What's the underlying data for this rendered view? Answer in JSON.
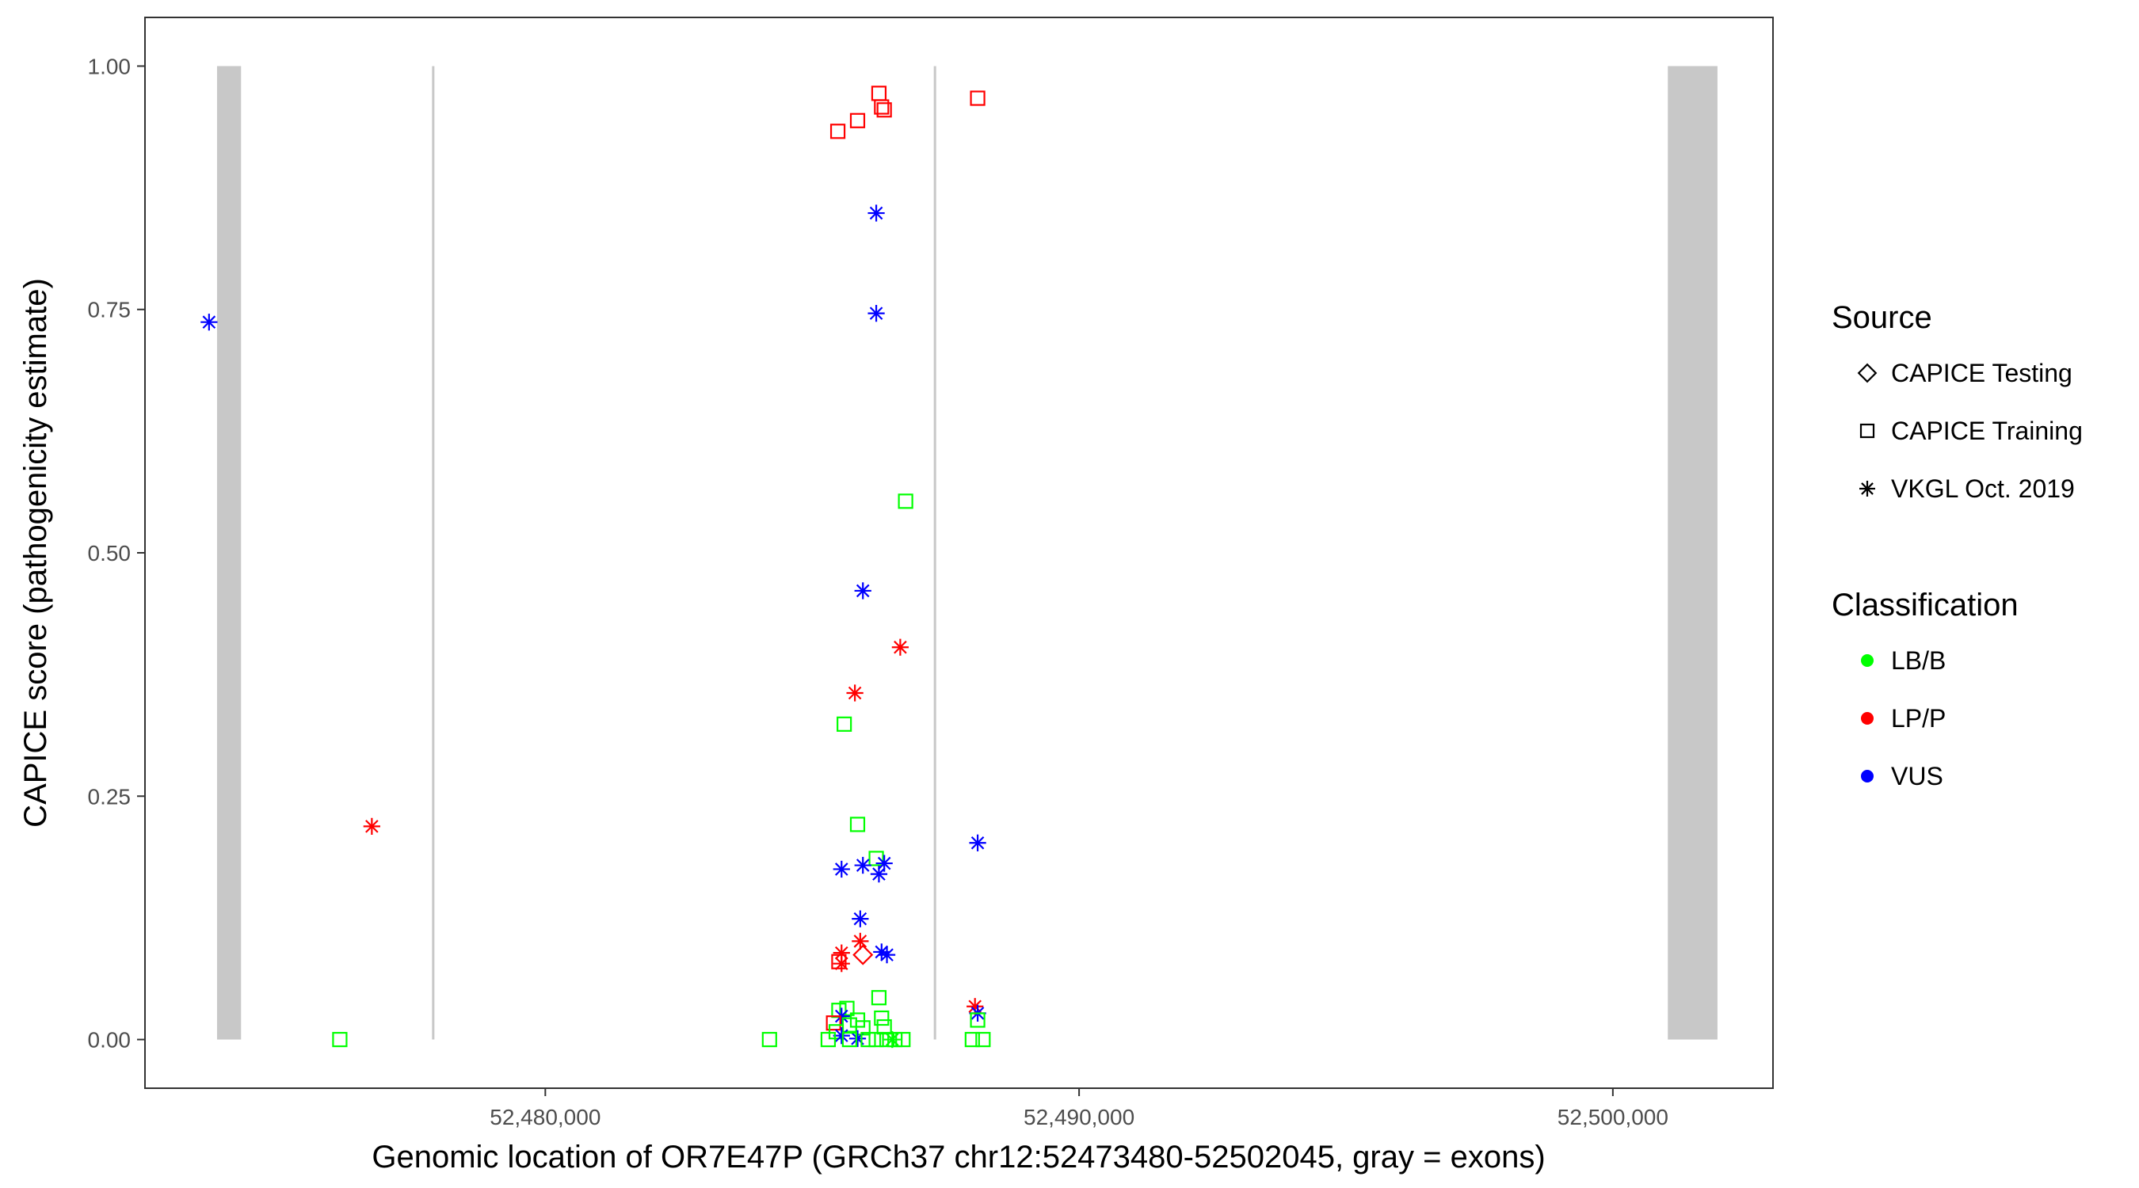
{
  "chart_data": {
    "type": "scatter",
    "title": "",
    "xlabel": "Genomic location of OR7E47P (GRCh37 chr12:52473480-52502045, gray = exons)",
    "ylabel": "CAPICE score (pathogenicity estimate)",
    "xlim": [
      52472500,
      52503000
    ],
    "ylim": [
      -0.05,
      1.05
    ],
    "x_ticks": [
      52480000,
      52490000,
      52500000
    ],
    "x_tick_labels": [
      "52,480,000",
      "52,490,000",
      "52,500,000"
    ],
    "y_ticks": [
      0,
      0.25,
      0.5,
      0.75,
      1.0
    ],
    "y_tick_labels": [
      "0.00",
      "0.25",
      "0.50",
      "0.75",
      "1.00"
    ],
    "grid": false,
    "exons": [
      [
        52473850,
        52474300
      ],
      [
        52501030,
        52501960
      ]
    ],
    "boundaries": [
      52477900,
      52487300
    ],
    "legend": {
      "placement": "right",
      "source_title": "Source",
      "source_items": [
        {
          "label": "CAPICE Testing",
          "shape": "diamond"
        },
        {
          "label": "CAPICE Training",
          "shape": "square"
        },
        {
          "label": "VKGL Oct. 2019",
          "shape": "asterisk"
        }
      ],
      "class_title": "Classification",
      "class_items": [
        {
          "label": "LB/B",
          "color": "#00ff00"
        },
        {
          "label": "LP/P",
          "color": "#ff0000"
        },
        {
          "label": "VUS",
          "color": "#0000ff"
        }
      ]
    },
    "points": [
      {
        "x": 52486250,
        "y": 0.972,
        "source": "CAPICE Training",
        "class": "LP/P"
      },
      {
        "x": 52486300,
        "y": 0.958,
        "source": "CAPICE Training",
        "class": "LP/P"
      },
      {
        "x": 52486350,
        "y": 0.955,
        "source": "CAPICE Training",
        "class": "LP/P"
      },
      {
        "x": 52485850,
        "y": 0.944,
        "source": "CAPICE Training",
        "class": "LP/P"
      },
      {
        "x": 52485480,
        "y": 0.933,
        "source": "CAPICE Training",
        "class": "LP/P"
      },
      {
        "x": 52488100,
        "y": 0.967,
        "source": "CAPICE Training",
        "class": "LP/P"
      },
      {
        "x": 52486200,
        "y": 0.849,
        "source": "VKGL Oct. 2019",
        "class": "VUS"
      },
      {
        "x": 52486200,
        "y": 0.746,
        "source": "VKGL Oct. 2019",
        "class": "VUS"
      },
      {
        "x": 52473700,
        "y": 0.737,
        "source": "VKGL Oct. 2019",
        "class": "VUS"
      },
      {
        "x": 52486750,
        "y": 0.553,
        "source": "CAPICE Training",
        "class": "LB/B"
      },
      {
        "x": 52485950,
        "y": 0.461,
        "source": "VKGL Oct. 2019",
        "class": "VUS"
      },
      {
        "x": 52486650,
        "y": 0.403,
        "source": "VKGL Oct. 2019",
        "class": "LP/P"
      },
      {
        "x": 52485800,
        "y": 0.356,
        "source": "VKGL Oct. 2019",
        "class": "LP/P"
      },
      {
        "x": 52485600,
        "y": 0.324,
        "source": "CAPICE Training",
        "class": "LB/B"
      },
      {
        "x": 52485850,
        "y": 0.221,
        "source": "CAPICE Training",
        "class": "LB/B"
      },
      {
        "x": 52476750,
        "y": 0.219,
        "source": "VKGL Oct. 2019",
        "class": "LP/P"
      },
      {
        "x": 52488100,
        "y": 0.202,
        "source": "VKGL Oct. 2019",
        "class": "VUS"
      },
      {
        "x": 52486200,
        "y": 0.186,
        "source": "CAPICE Training",
        "class": "LB/B"
      },
      {
        "x": 52486350,
        "y": 0.181,
        "source": "VKGL Oct. 2019",
        "class": "VUS"
      },
      {
        "x": 52485950,
        "y": 0.179,
        "source": "VKGL Oct. 2019",
        "class": "VUS"
      },
      {
        "x": 52485550,
        "y": 0.175,
        "source": "VKGL Oct. 2019",
        "class": "VUS"
      },
      {
        "x": 52486250,
        "y": 0.17,
        "source": "VKGL Oct. 2019",
        "class": "VUS"
      },
      {
        "x": 52485900,
        "y": 0.124,
        "source": "VKGL Oct. 2019",
        "class": "VUS"
      },
      {
        "x": 52485900,
        "y": 0.101,
        "source": "VKGL Oct. 2019",
        "class": "LP/P"
      },
      {
        "x": 52485950,
        "y": 0.087,
        "source": "CAPICE Testing",
        "class": "LP/P"
      },
      {
        "x": 52486300,
        "y": 0.09,
        "source": "VKGL Oct. 2019",
        "class": "VUS"
      },
      {
        "x": 52486400,
        "y": 0.087,
        "source": "VKGL Oct. 2019",
        "class": "VUS"
      },
      {
        "x": 52485550,
        "y": 0.089,
        "source": "VKGL Oct. 2019",
        "class": "LP/P"
      },
      {
        "x": 52485500,
        "y": 0.08,
        "source": "CAPICE Training",
        "class": "LP/P"
      },
      {
        "x": 52485550,
        "y": 0.078,
        "source": "VKGL Oct. 2019",
        "class": "LP/P"
      },
      {
        "x": 52486250,
        "y": 0.043,
        "source": "CAPICE Training",
        "class": "LB/B"
      },
      {
        "x": 52488050,
        "y": 0.034,
        "source": "VKGL Oct. 2019",
        "class": "LP/P"
      },
      {
        "x": 52488100,
        "y": 0.027,
        "source": "VKGL Oct. 2019",
        "class": "VUS"
      },
      {
        "x": 52488100,
        "y": 0.02,
        "source": "CAPICE Training",
        "class": "LB/B"
      },
      {
        "x": 52485650,
        "y": 0.032,
        "source": "CAPICE Training",
        "class": "LB/B"
      },
      {
        "x": 52485500,
        "y": 0.03,
        "source": "CAPICE Training",
        "class": "LB/B"
      },
      {
        "x": 52485550,
        "y": 0.024,
        "source": "VKGL Oct. 2019",
        "class": "VUS"
      },
      {
        "x": 52485850,
        "y": 0.02,
        "source": "CAPICE Training",
        "class": "LB/B"
      },
      {
        "x": 52486300,
        "y": 0.022,
        "source": "CAPICE Training",
        "class": "LB/B"
      },
      {
        "x": 52485400,
        "y": 0.017,
        "source": "CAPICE Training",
        "class": "LP/P"
      },
      {
        "x": 52485700,
        "y": 0.015,
        "source": "CAPICE Training",
        "class": "LB/B"
      },
      {
        "x": 52485950,
        "y": 0.012,
        "source": "CAPICE Training",
        "class": "LB/B"
      },
      {
        "x": 52486350,
        "y": 0.013,
        "source": "CAPICE Training",
        "class": "LB/B"
      },
      {
        "x": 52485450,
        "y": 0.008,
        "source": "CAPICE Training",
        "class": "LB/B"
      },
      {
        "x": 52485550,
        "y": 0.004,
        "source": "VKGL Oct. 2019",
        "class": "VUS"
      },
      {
        "x": 52485850,
        "y": 0.001,
        "source": "VKGL Oct. 2019",
        "class": "VUS"
      },
      {
        "x": 52485300,
        "y": 0.0,
        "source": "CAPICE Training",
        "class": "LB/B"
      },
      {
        "x": 52485700,
        "y": 0.0,
        "source": "CAPICE Training",
        "class": "LB/B"
      },
      {
        "x": 52486050,
        "y": 0.0,
        "source": "CAPICE Training",
        "class": "LB/B"
      },
      {
        "x": 52486200,
        "y": 0.0,
        "source": "CAPICE Training",
        "class": "LB/B"
      },
      {
        "x": 52486400,
        "y": 0.0,
        "source": "CAPICE Training",
        "class": "LB/B"
      },
      {
        "x": 52486550,
        "y": 0.0,
        "source": "CAPICE Training",
        "class": "LB/B"
      },
      {
        "x": 52486700,
        "y": 0.0,
        "source": "CAPICE Training",
        "class": "LB/B"
      },
      {
        "x": 52486500,
        "y": 0.0,
        "source": "VKGL Oct. 2019",
        "class": "LB/B"
      },
      {
        "x": 52476150,
        "y": 0.0,
        "source": "CAPICE Training",
        "class": "LB/B"
      },
      {
        "x": 52484200,
        "y": 0.0,
        "source": "CAPICE Training",
        "class": "LB/B"
      },
      {
        "x": 52488000,
        "y": 0.0,
        "source": "CAPICE Training",
        "class": "LB/B"
      },
      {
        "x": 52488200,
        "y": 0.0,
        "source": "CAPICE Training",
        "class": "LB/B"
      }
    ]
  }
}
